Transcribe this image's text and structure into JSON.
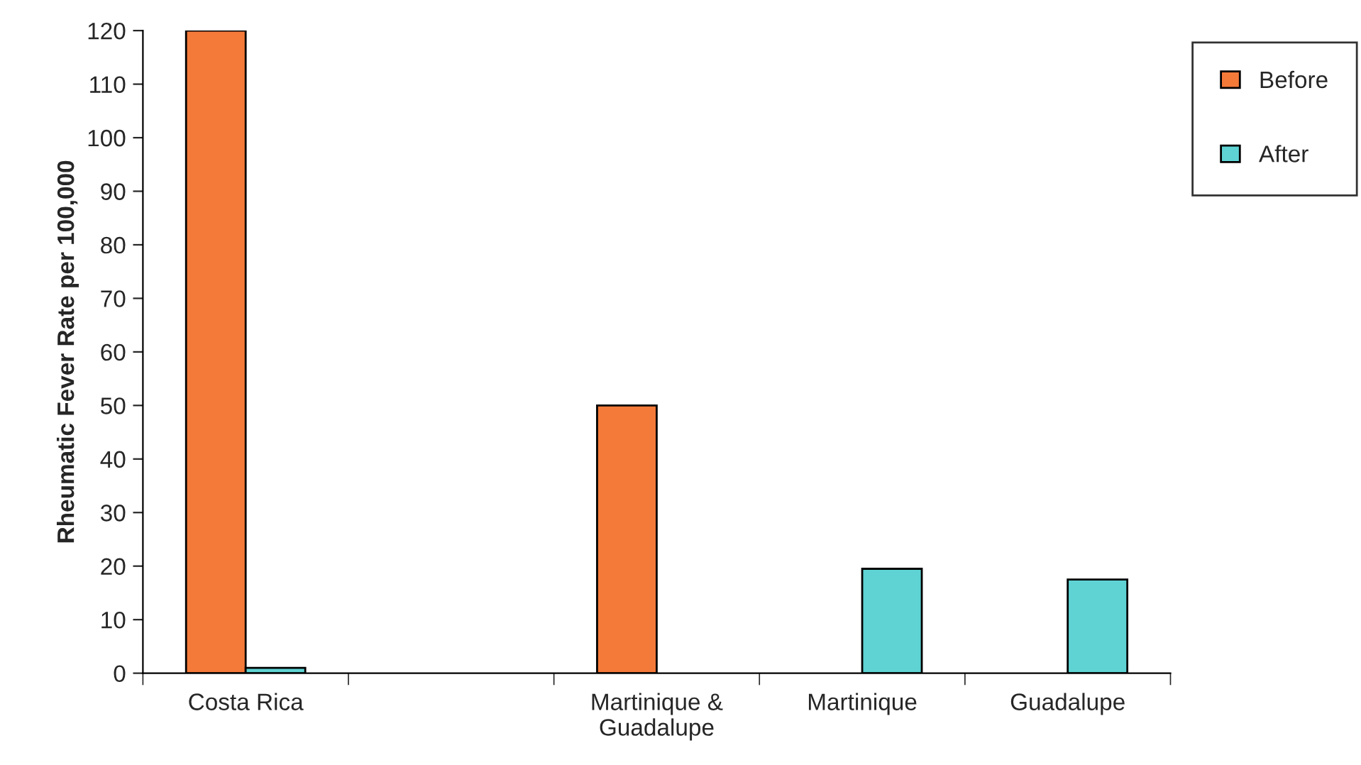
{
  "chart_data": {
    "type": "bar",
    "ylabel": "Rheumatic Fever Rate per 100,000",
    "categories": [
      "Costa Rica",
      null,
      "Martinique &\nGuadalupe",
      "Martinique",
      "Guadalupe"
    ],
    "series": [
      {
        "name": "Before",
        "color": "#f47a3a",
        "values": [
          120,
          null,
          50,
          null,
          null
        ]
      },
      {
        "name": "After",
        "color": "#5fd3d3",
        "values": [
          1,
          null,
          null,
          19.5,
          17.5
        ]
      }
    ],
    "ylim": [
      0,
      120
    ],
    "yticks": [
      0,
      10,
      20,
      30,
      40,
      50,
      60,
      70,
      80,
      90,
      100,
      110,
      120
    ],
    "grid": false,
    "legend": "top right"
  }
}
